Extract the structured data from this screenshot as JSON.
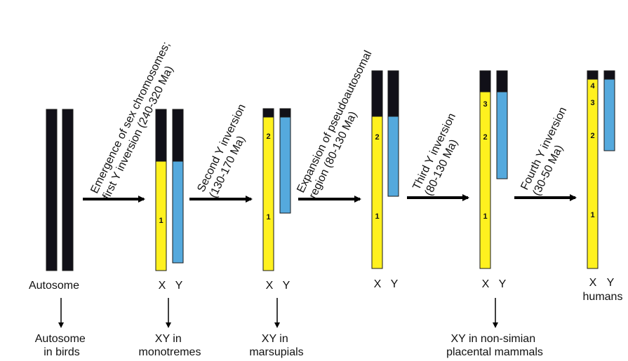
{
  "colors": {
    "ancestral": "#111018",
    "x_region": "#fff11f",
    "y_region": "#55a9dd",
    "outline": "#1a1a1a",
    "arrow": "#000000"
  },
  "stages": [
    {
      "name": "autosome",
      "chromosome_label": "Autosome",
      "species_label": [
        "Autosome",
        "in birds"
      ]
    },
    {
      "name": "monotremes",
      "x_label": "X",
      "y_label": "Y",
      "species_label": [
        "XY in",
        "monotremes"
      ],
      "strata": [
        "1"
      ]
    },
    {
      "name": "marsupials",
      "x_label": "X",
      "y_label": "Y",
      "species_label": [
        "XY in",
        "marsupials"
      ],
      "strata": [
        "1",
        "2"
      ]
    },
    {
      "name": "pseudoautosomal",
      "x_label": "X",
      "y_label": "Y",
      "strata": [
        "1",
        "2"
      ]
    },
    {
      "name": "placental",
      "x_label": "X",
      "y_label": "Y",
      "species_label": [
        "XY in non-simian",
        "placental mammals"
      ],
      "strata": [
        "1",
        "2",
        "3"
      ]
    },
    {
      "name": "humans",
      "x_label": "X",
      "y_label": "Y",
      "species_label": [
        "humans"
      ],
      "strata": [
        "1",
        "2",
        "3",
        "4"
      ]
    }
  ],
  "events": [
    {
      "lines": [
        "Emergence of sex chromosomes;",
        "first Y inversion (240-320 Ma)"
      ]
    },
    {
      "lines": [
        "Second Y inversion",
        "(130-170 Ma)"
      ]
    },
    {
      "lines": [
        "Expansion of pseudoautosomal",
        "region (80-130 Ma)"
      ]
    },
    {
      "lines": [
        "Third Y inversion",
        "(80-130 Ma)"
      ]
    },
    {
      "lines": [
        "Fourth Y inversion",
        "(30-50 Ma)"
      ]
    }
  ]
}
